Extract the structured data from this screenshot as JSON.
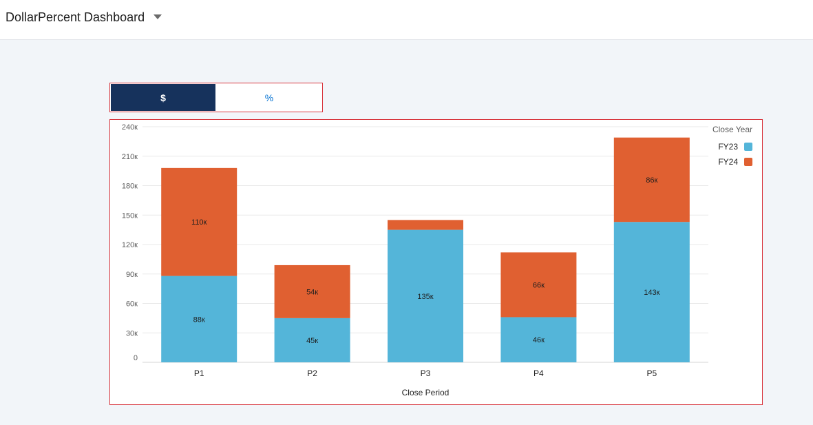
{
  "header": {
    "title": "DollarPercent Dashboard",
    "dropdown_icon": "chevron-down-icon"
  },
  "toggle": {
    "dollar_label": "$",
    "percent_label": "%",
    "selected": "$"
  },
  "colors": {
    "fy23": "#54b5d9",
    "fy24": "#e06031",
    "toggle_active": "#16325c",
    "toggle_inactive_text": "#0070d2",
    "border": "#d8353d"
  },
  "chart_data": {
    "type": "bar",
    "stacked": true,
    "categories": [
      "P1",
      "P2",
      "P3",
      "P4",
      "P5"
    ],
    "series": [
      {
        "name": "FY23",
        "values": [
          88000,
          45000,
          135000,
          46000,
          143000
        ],
        "labels": [
          "88к",
          "45к",
          "135к",
          "46к",
          "143к"
        ]
      },
      {
        "name": "FY24",
        "values": [
          110000,
          54000,
          10000,
          66000,
          86000
        ],
        "labels": [
          "110к",
          "54к",
          "",
          "66к",
          "86к"
        ]
      }
    ],
    "xlabel": "Close Period",
    "ylabel": "",
    "ylim": [
      0,
      240000
    ],
    "yticks": [
      0,
      30000,
      60000,
      90000,
      120000,
      150000,
      180000,
      210000,
      240000
    ],
    "ytick_labels": [
      "0",
      "30к",
      "60к",
      "90к",
      "120к",
      "150к",
      "180к",
      "210к",
      "240к"
    ],
    "legend": {
      "title": "Close Year",
      "position": "top-right",
      "items": [
        "FY23",
        "FY24"
      ]
    },
    "grid": true
  }
}
